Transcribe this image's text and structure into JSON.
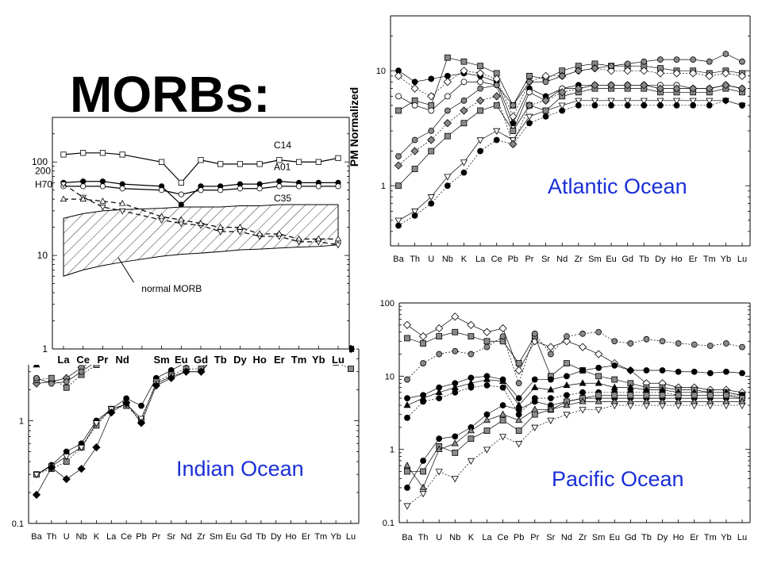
{
  "slide": {
    "title": "MORBs:"
  },
  "colors": {
    "ocean_label": "#1a2fd6",
    "axis": "#000000",
    "gray_fill": "#8a8a8a",
    "light_fill": "#cfcfcf"
  },
  "chart_data": [
    {
      "id": "atlantic",
      "type": "line",
      "title": "Atlantic Ocean",
      "ylabel": "PM Normalized",
      "yscale": "log",
      "ylim": [
        0.3,
        30
      ],
      "yticks": [
        {
          "v": 1,
          "label": "1"
        },
        {
          "v": 10,
          "label": "10"
        }
      ],
      "categories": [
        "Ba",
        "Th",
        "U",
        "Nb",
        "K",
        "La",
        "Ce",
        "Pb",
        "Pr",
        "Sr",
        "Nd",
        "Zr",
        "Sm",
        "Eu",
        "Gd",
        "Tb",
        "Dy",
        "Ho",
        "Er",
        "Tm",
        "Yb",
        "Lu"
      ],
      "series": [
        {
          "marker": "circle",
          "fill": "black",
          "values": [
            10,
            8,
            8.5,
            9,
            9.5,
            9,
            8,
            3.5,
            7,
            6,
            7,
            7.5,
            7.5,
            7.5,
            7.5,
            7.5,
            7,
            7,
            7,
            7,
            7.5,
            7
          ]
        },
        {
          "marker": "square",
          "fill": "gray",
          "values": [
            4.5,
            5.5,
            5,
            13,
            12,
            11,
            9.5,
            5,
            9,
            8.5,
            10,
            11,
            11.5,
            11,
            11,
            11,
            10.5,
            10,
            10,
            9.5,
            10,
            9.5
          ]
        },
        {
          "marker": "diamond",
          "fill": "white",
          "values": [
            9,
            7,
            6,
            8,
            10,
            9.5,
            8.5,
            4,
            8,
            9,
            9,
            10,
            10.5,
            10,
            10,
            10,
            9.5,
            9.5,
            9.5,
            9,
            9.5,
            9
          ]
        },
        {
          "marker": "circle",
          "fill": "white",
          "values": [
            6,
            5,
            4.5,
            6,
            8,
            8,
            7.5,
            3,
            6.5,
            5.5,
            7,
            7,
            7.5,
            7.5,
            7.5,
            7.5,
            7.5,
            7.5,
            7,
            7,
            7.5,
            7
          ]
        },
        {
          "marker": "triangle-down",
          "fill": "white",
          "values": [
            0.5,
            0.6,
            0.8,
            1.2,
            1.6,
            2.5,
            3,
            2.5,
            4,
            4.5,
            5,
            5.5,
            5.5,
            5.5,
            5.5,
            5.5,
            5.5,
            5.5,
            5.5,
            5.5,
            5.5,
            5
          ]
        },
        {
          "marker": "circle",
          "fill": "black",
          "values": [
            0.45,
            0.55,
            0.7,
            1,
            1.3,
            2,
            2.5,
            2.3,
            3.5,
            4,
            4.5,
            5,
            5,
            5,
            5,
            5,
            5,
            5,
            5,
            5,
            5.5,
            5
          ]
        },
        {
          "marker": "square",
          "fill": "gray",
          "values": [
            1,
            1.4,
            2,
            2.7,
            3.5,
            4.5,
            5,
            3,
            5,
            4.5,
            6,
            6.5,
            7,
            7,
            7,
            7,
            6.5,
            6.5,
            6.5,
            6.5,
            7,
            6.5
          ]
        },
        {
          "marker": "circle",
          "fill": "gray",
          "values": [
            1.8,
            2.5,
            3,
            4.5,
            5.5,
            7,
            7.5,
            5,
            8,
            8,
            9,
            10,
            10.5,
            11,
            11.5,
            12,
            12.5,
            12.5,
            12.5,
            12,
            14,
            12
          ]
        },
        {
          "marker": "diamond",
          "fill": "gray",
          "values": [
            1.5,
            2,
            2.5,
            3.5,
            4.5,
            5.5,
            6,
            2.3,
            5,
            5.5,
            6.5,
            7,
            7.5,
            7.5,
            7.5,
            7.5,
            7,
            7,
            7,
            7,
            7.5,
            7
          ]
        }
      ]
    },
    {
      "id": "pacific",
      "type": "line",
      "title": "Pacific Ocean",
      "yscale": "log",
      "ylim": [
        0.1,
        100
      ],
      "yticks": [
        {
          "v": 0.1,
          "label": "0.1"
        },
        {
          "v": 1,
          "label": "1"
        },
        {
          "v": 10,
          "label": "10"
        },
        {
          "v": 100,
          "label": "100"
        }
      ],
      "categories": [
        "Ba",
        "Th",
        "U",
        "Nb",
        "K",
        "La",
        "Ce",
        "Pb",
        "Pr",
        "Sr",
        "Nd",
        "Zr",
        "Sm",
        "Eu",
        "Gd",
        "Tb",
        "Dy",
        "Ho",
        "Er",
        "Tm",
        "Yb",
        "Lu"
      ],
      "series": [
        {
          "marker": "diamond",
          "fill": "white",
          "values": [
            50,
            35,
            45,
            65,
            50,
            40,
            45,
            12,
            30,
            25,
            30,
            25,
            20,
            15,
            12,
            8,
            8,
            7,
            7,
            6.5,
            6.5,
            6
          ]
        },
        {
          "marker": "square",
          "fill": "gray",
          "values": [
            33,
            28,
            35,
            40,
            35,
            30,
            30,
            15,
            35,
            10,
            15,
            12,
            10,
            9,
            8,
            7,
            7,
            6.5,
            6.5,
            6,
            6,
            5.5
          ]
        },
        {
          "marker": "circle",
          "fill": "gray",
          "values": [
            9,
            15,
            20,
            22,
            20,
            25,
            35,
            8,
            38,
            20,
            35,
            38,
            40,
            30,
            28,
            32,
            30,
            28,
            27,
            26,
            28,
            25
          ]
        },
        {
          "marker": "circle",
          "fill": "black",
          "values": [
            5,
            5.5,
            7,
            8,
            9.5,
            10,
            9,
            5,
            9,
            9,
            10,
            12,
            13,
            14,
            12,
            12,
            12,
            11.5,
            11.5,
            11,
            11.5,
            11
          ]
        },
        {
          "marker": "triangle-up",
          "fill": "black",
          "values": [
            4,
            5,
            6,
            7,
            8,
            9,
            8.5,
            4,
            7,
            6.5,
            7.5,
            8,
            8,
            7,
            7,
            6.5,
            6.5,
            6,
            6,
            6,
            6,
            5.5
          ]
        },
        {
          "marker": "circle",
          "fill": "black",
          "values": [
            2.7,
            4.5,
            5,
            6,
            7,
            7.5,
            7,
            3,
            5,
            5,
            5.5,
            6,
            6,
            6,
            6,
            6,
            6,
            5.5,
            5.5,
            5.5,
            5.5,
            5.5
          ]
        },
        {
          "marker": "circle",
          "fill": "black",
          "values": [
            0.3,
            0.7,
            1.4,
            1.5,
            2,
            3,
            4,
            3.5,
            4.5,
            4,
            4.5,
            5,
            5,
            5,
            5,
            5,
            5,
            5,
            5,
            5,
            5,
            5
          ]
        },
        {
          "marker": "square",
          "fill": "gray",
          "values": [
            0.5,
            0.5,
            1.1,
            0.9,
            1.4,
            1.8,
            2.5,
            1.8,
            3,
            3.5,
            4.5,
            5,
            5.5,
            5.5,
            5.5,
            5.5,
            5.5,
            5.5,
            5.5,
            5.5,
            5.5,
            5
          ]
        },
        {
          "marker": "triangle-down",
          "fill": "white",
          "values": [
            0.17,
            0.25,
            0.5,
            0.4,
            0.7,
            1,
            1.5,
            1.2,
            2,
            2.5,
            3,
            3.5,
            3.5,
            4,
            4,
            4,
            4,
            4,
            4,
            4,
            4,
            4
          ]
        },
        {
          "marker": "triangle-up",
          "fill": "gray",
          "values": [
            0.6,
            0.3,
            1,
            1.2,
            1.8,
            2.5,
            3,
            2.5,
            3.5,
            3.5,
            4,
            4.5,
            4.5,
            4.5,
            4.5,
            4.5,
            4.5,
            4.5,
            4.5,
            4.5,
            4.5,
            4.5
          ]
        }
      ]
    },
    {
      "id": "indian",
      "type": "line",
      "title": "Indian Ocean",
      "yscale": "log",
      "ylim": [
        0.1,
        5
      ],
      "yticks": [
        {
          "v": 0.1,
          "label": "0.1"
        },
        {
          "v": 1,
          "label": "1"
        }
      ],
      "categories": [
        "Ba",
        "Th",
        "U",
        "Nb",
        "K",
        "La",
        "Ce",
        "Pb",
        "Pr",
        "Sr",
        "Nd",
        "Zr",
        "Sm",
        "Eu",
        "Gd",
        "Tb",
        "Dy",
        "Ho",
        "Er",
        "Tm",
        "Yb",
        "Lu"
      ],
      "series": [
        {
          "marker": "triangle-up",
          "fill": "black",
          "values": [
            3.5,
            4.5,
            4.5,
            5,
            5,
            5,
            5,
            5,
            5,
            5,
            5,
            5,
            5,
            5,
            5,
            5,
            5,
            5,
            5,
            5,
            5,
            5
          ]
        },
        {
          "marker": "diamond",
          "fill": "gray",
          "values": [
            2.3,
            2.4,
            2.6,
            3.3,
            4,
            5,
            5,
            5,
            5,
            5,
            5,
            5,
            5,
            5,
            5,
            5,
            5,
            5,
            5,
            5,
            5,
            5
          ]
        },
        {
          "marker": "square",
          "fill": "gray",
          "values": [
            2.5,
            2.6,
            2.1,
            2.8,
            3.5,
            4.5,
            5,
            5,
            5,
            5,
            5,
            5,
            5,
            5,
            5,
            5,
            5,
            5,
            4,
            3.8,
            3.7,
            3.2
          ]
        },
        {
          "marker": "circle",
          "fill": "gray",
          "values": [
            2.6,
            2.3,
            2.4,
            3,
            3.8,
            4.8,
            5,
            5,
            5,
            5,
            5,
            5,
            5,
            5,
            5,
            5,
            5,
            5,
            5,
            5,
            5,
            5
          ]
        },
        {
          "marker": "circle",
          "fill": "black",
          "values": [
            0.3,
            0.37,
            0.5,
            0.6,
            1,
            1.3,
            1.65,
            1.4,
            2.6,
            3.1,
            3.7,
            4.4,
            5,
            5,
            5,
            5,
            5,
            5,
            5,
            5,
            5,
            5
          ]
        },
        {
          "marker": "square",
          "fill": "gray",
          "values": [
            0.3,
            0.34,
            0.4,
            0.55,
            0.9,
            1.3,
            1.4,
            1,
            2.4,
            2.8,
            3.2,
            3.2,
            4.8,
            5,
            5,
            5,
            5,
            5,
            5,
            5,
            5,
            5
          ]
        },
        {
          "marker": "triangle-down",
          "fill": "white",
          "values": [
            0.3,
            0.36,
            0.45,
            0.55,
            0.95,
            1.3,
            1.45,
            1.05,
            2.3,
            2.7,
            3,
            3,
            4.6,
            5,
            5,
            5,
            5,
            5,
            5,
            5,
            5,
            5
          ]
        },
        {
          "marker": "diamond",
          "fill": "black",
          "values": [
            0.19,
            0.35,
            0.27,
            0.34,
            0.55,
            1.2,
            1.5,
            0.95,
            2.2,
            2.6,
            3,
            3,
            4.4,
            5,
            5,
            5,
            5,
            5,
            5,
            5,
            5,
            5
          ]
        }
      ]
    },
    {
      "id": "ree",
      "type": "line",
      "yscale": "log",
      "ylim": [
        1,
        300
      ],
      "yticks": [
        {
          "v": 1,
          "label": "1"
        },
        {
          "v": 10,
          "label": "10"
        },
        {
          "v": 100,
          "label": "100"
        }
      ],
      "categories": [
        "La",
        "Ce",
        "Pr",
        "Nd",
        "",
        "Sm",
        "Eu",
        "Gd",
        "Tb",
        "Dy",
        "Ho",
        "Er",
        "Tm",
        "Yb",
        "Lu"
      ],
      "series": [
        {
          "name": "C14",
          "marker": "square",
          "fill": "white",
          "dashed": false,
          "values": [
            120,
            125,
            125,
            120,
            null,
            100,
            60,
            105,
            95,
            95,
            95,
            105,
            100,
            100,
            110
          ]
        },
        {
          "name": "A01",
          "marker": "circle",
          "fill": "black",
          "dashed": false,
          "values": [
            60,
            62,
            62,
            58,
            null,
            55,
            35,
            55,
            55,
            58,
            58,
            62,
            60,
            60,
            60
          ]
        },
        {
          "name": "C35",
          "marker": "circle",
          "fill": "white",
          "dashed": false,
          "values": [
            55,
            55,
            55,
            52,
            null,
            50,
            45,
            50,
            50,
            52,
            52,
            55,
            55,
            55,
            55
          ]
        },
        {
          "name": "200",
          "marker": "triangle-down",
          "fill": "white",
          "dashed": true,
          "values": [
            58,
            42,
            33,
            30,
            null,
            24,
            22,
            21,
            18,
            18,
            16,
            16,
            14,
            14,
            13
          ]
        },
        {
          "name": "H70",
          "marker": "triangle-up",
          "fill": "white",
          "dashed": true,
          "values": [
            40,
            40,
            38,
            36,
            null,
            26,
            24,
            22,
            20,
            20,
            17,
            17,
            15,
            15,
            15
          ]
        }
      ],
      "band": {
        "upper": [
          25,
          28,
          30,
          31,
          null,
          32,
          33,
          33,
          33,
          34,
          34,
          35,
          35,
          35,
          35
        ],
        "lower": [
          6,
          7,
          7.8,
          8.5,
          null,
          9.8,
          10.3,
          10.6,
          11,
          11.5,
          11.7,
          12,
          12.3,
          12.5,
          13
        ]
      },
      "annotations": {
        "band_label": "normal  MORB"
      }
    }
  ]
}
